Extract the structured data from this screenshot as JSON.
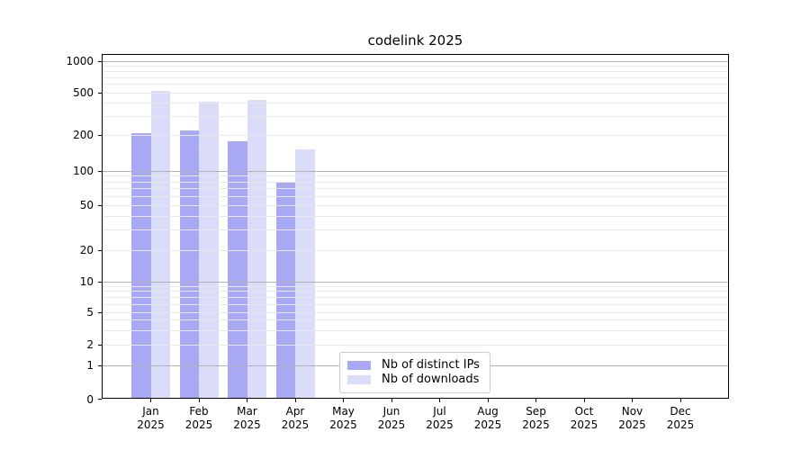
{
  "colors": {
    "bar_ips": "#a8a8f4",
    "bar_downloads": "#dbdbfa",
    "grid_major": "#b2b2b2",
    "grid_minor": "#e8e8e8",
    "axis": "#000000",
    "legend_border": "#cccccc"
  },
  "chart_data": {
    "type": "bar",
    "title": "codelink 2025",
    "categories": [
      "Jan 2025",
      "Feb 2025",
      "Mar 2025",
      "Apr 2025",
      "May 2025",
      "Jun 2025",
      "Jul 2025",
      "Aug 2025",
      "Sep 2025",
      "Oct 2025",
      "Nov 2025",
      "Dec 2025"
    ],
    "series": [
      {
        "name": "Nb of distinct IPs",
        "values": [
          205,
          220,
          175,
          78,
          null,
          null,
          null,
          null,
          null,
          null,
          null,
          null
        ]
      },
      {
        "name": "Nb of downloads",
        "values": [
          520,
          410,
          425,
          150,
          null,
          null,
          null,
          null,
          null,
          null,
          null,
          null
        ]
      }
    ],
    "yscale": "symlog",
    "yticks": [
      0,
      1,
      2,
      5,
      10,
      20,
      50,
      100,
      200,
      500,
      1000
    ],
    "ylim": [
      0,
      1000
    ],
    "grid": true,
    "legend_position": "lower center"
  }
}
